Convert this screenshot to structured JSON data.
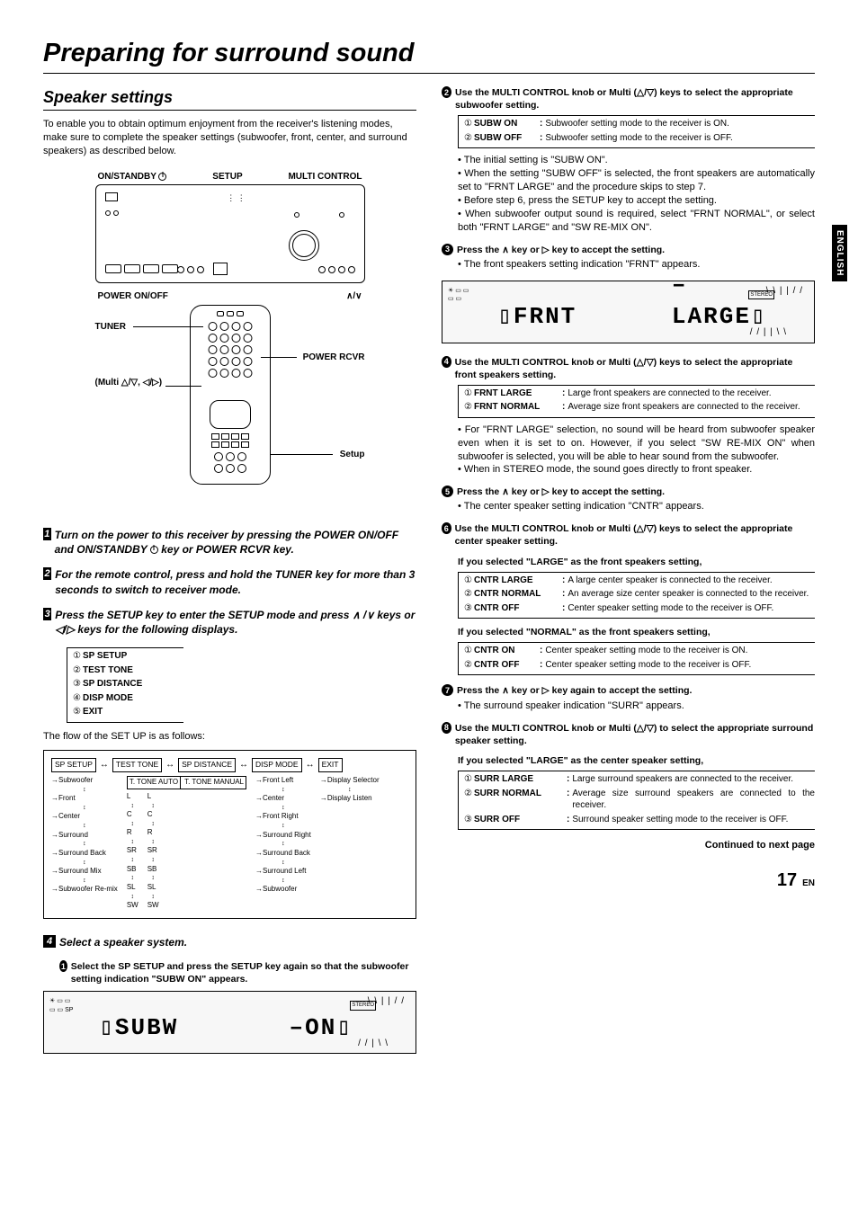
{
  "page": {
    "title": "Preparing for surround sound",
    "section": "Speaker settings",
    "intro": "To enable you to obtain optimum enjoyment from the receiver's listening modes, make sure to complete the speaker settings (subwoofer, front, center, and surround speakers) as described below.",
    "side_tab": "ENGLISH",
    "continued": "Continued to next page",
    "page_num": "17",
    "page_lang": "EN"
  },
  "diagram_labels": {
    "onstandby": "ON/STANDBY",
    "setup": "SETUP",
    "multi": "MULTI CONTROL",
    "poweronoff": "POWER ON/OFF",
    "updown": "∧/∨",
    "tuner": "TUNER",
    "powerrcvr": "POWER RCVR",
    "multi_keys": "(Multi △/▽, ◁/▷)",
    "setup2": "Setup"
  },
  "left_steps": [
    {
      "n": "1",
      "text": "Turn on the power to this receiver by pressing the POWER ON/OFF and ON/STANDBY",
      "tail": " key or POWER RCVR key.",
      "power": true
    },
    {
      "n": "2",
      "text": "For the remote control, press and hold the TUNER key for more than 3 seconds to switch to receiver mode."
    },
    {
      "n": "3",
      "text": "Press the SETUP  key to enter the SETUP mode and press ∧ /∨ keys or ◁/▷ keys for the following displays."
    }
  ],
  "step3_enum": [
    "SP SETUP",
    "TEST TONE",
    "SP DISTANCE",
    "DISP MODE",
    "EXIT"
  ],
  "flow_intro": "The flow of the SET UP is as follows:",
  "flow_top": [
    "SP SETUP",
    "TEST TONE",
    "SP DISTANCE",
    "DISP MODE",
    "EXIT"
  ],
  "flow_cols": {
    "c1": [
      "Subwoofer",
      "Front",
      "Center",
      "Surround",
      "Surround Back",
      "Surround Mix",
      "Subwoofer Re-mix"
    ],
    "c2_top": [
      "T. TONE AUTO",
      "T. TONE MANUAL"
    ],
    "c2": [
      "L",
      "C",
      "R",
      "SR",
      "SB",
      "SL",
      "SW"
    ],
    "c2b": [
      "L",
      "C",
      "R",
      "SR",
      "SB",
      "SL",
      "SW"
    ],
    "c3": [
      "Front Left",
      "Center",
      "Front Right",
      "Surround Right",
      "Surround Back",
      "Surround Left",
      "Subwoofer"
    ],
    "c4": [
      "Display Selector",
      "Display Listen"
    ]
  },
  "step4": {
    "n": "4",
    "title": "Select a speaker system.",
    "sub1_n": "1",
    "sub1": "Select the SP SETUP  and press the SETUP key again so that the subwoofer setting indication \"SUBW ON\" appears."
  },
  "display1": {
    "left": "SUBW",
    "right": "ON",
    "stereo": "STEREO"
  },
  "display2": {
    "left": "FRNT",
    "right": "LARGE",
    "stereo": "STEREO"
  },
  "right": {
    "s2": {
      "n": "2",
      "head": "Use the MULTI CONTROL knob or Multi (△/▽) keys to select the appropriate subwoofer setting.",
      "opts": [
        {
          "n": "①",
          "term": "SUBW ON",
          "desc": "Subwoofer setting mode to the receiver is ON."
        },
        {
          "n": "②",
          "term": "SUBW OFF",
          "desc": "Subwoofer setting mode to the receiver is OFF."
        }
      ],
      "notes": [
        "The initial setting is \"SUBW ON\".",
        "When the setting \"SUBW OFF\" is selected, the front speakers are automatically set to \"FRNT LARGE\" and the procedure skips to step 7.",
        "Before step 6, press the SETUP key to accept the setting.",
        "When subwoofer output sound is required, select \"FRNT NORMAL\", or select both \"FRNT LARGE\" and \"SW RE-MIX ON\"."
      ]
    },
    "s3": {
      "n": "3",
      "head": "Press the ∧ key or ▷ key to accept the setting.",
      "note": "The front speakers setting indication \"FRNT\" appears."
    },
    "s4": {
      "n": "4",
      "head": "Use the MULTI CONTROL knob or Multi (△/▽) keys to select the appropriate front speakers setting.",
      "opts": [
        {
          "n": "①",
          "term": "FRNT LARGE",
          "desc": "Large front speakers are connected to the receiver."
        },
        {
          "n": "②",
          "term": "FRNT NORMAL",
          "desc": "Average size front speakers are connected to the receiver."
        }
      ],
      "notes": [
        "For \"FRNT LARGE\" selection, no sound will be heard from subwoofer speaker even when it is set to on. However, if you select \"SW RE-MIX ON\" when subwoofer is selected, you will be able to hear sound from the subwoofer.",
        "When in STEREO mode, the sound goes directly to front speaker."
      ]
    },
    "s5": {
      "n": "5",
      "head": "Press the ∧ key or ▷ key to accept the setting.",
      "note": "The center speaker setting indication \"CNTR\" appears."
    },
    "s6": {
      "n": "6",
      "head": "Use the MULTI CONTROL knob or Multi (△/▽) keys to select the appropriate center speaker setting.",
      "if_large": "If you selected \"LARGE\" as the front speakers setting,",
      "opts_large": [
        {
          "n": "①",
          "term": "CNTR LARGE",
          "desc": "A large center speaker is connected to the receiver."
        },
        {
          "n": "②",
          "term": "CNTR NORMAL",
          "desc": "An average size center speaker is connected to the receiver."
        },
        {
          "n": "③",
          "term": "CNTR OFF",
          "desc": "Center speaker setting mode to the receiver is OFF."
        }
      ],
      "if_normal": "If you selected \"NORMAL\" as the front speakers setting,",
      "opts_normal": [
        {
          "n": "①",
          "term": "CNTR ON",
          "desc": "Center speaker setting mode to the receiver is ON."
        },
        {
          "n": "②",
          "term": "CNTR OFF",
          "desc": "Center speaker setting mode to the receiver is OFF."
        }
      ]
    },
    "s7": {
      "n": "7",
      "head": "Press the ∧ key or ▷ key again to accept the setting.",
      "note": "The surround speaker indication \"SURR\" appears."
    },
    "s8": {
      "n": "8",
      "head": "Use the MULTI CONTROL knob or Multi (△/▽) to select the appropriate surround speaker setting.",
      "if_large": "If you selected \"LARGE\" as the center speaker setting,",
      "opts": [
        {
          "n": "①",
          "term": "SURR LARGE",
          "desc": "Large surround speakers are connected to the receiver."
        },
        {
          "n": "②",
          "term": "SURR NORMAL",
          "desc": "Average size surround speakers are connected to the receiver."
        },
        {
          "n": "③",
          "term": "SURR OFF",
          "desc": "Surround speaker setting mode to the receiver is OFF."
        }
      ]
    }
  }
}
